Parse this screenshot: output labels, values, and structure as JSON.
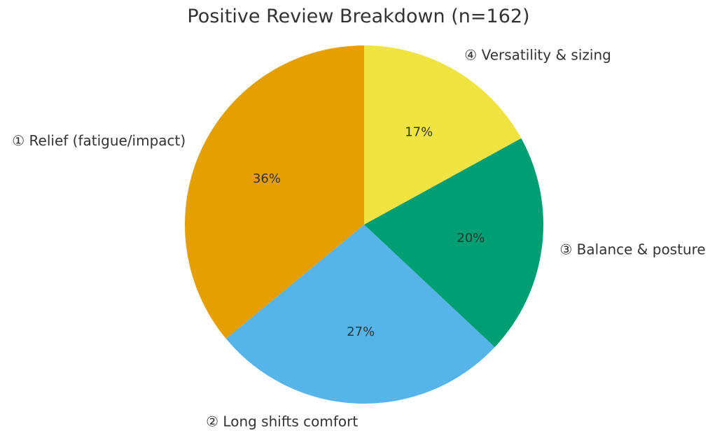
{
  "chart_data": {
    "type": "pie",
    "title": "Positive Review Breakdown (n=162)",
    "n_total": 162,
    "start_angle": 90,
    "direction": "counterclockwise",
    "label_distance": 1.1,
    "pct_distance": 0.6,
    "background_color": "#FFFFFF",
    "text_color": "#333333",
    "slices": [
      {
        "label": "① Relief (fatigue/impact)",
        "value": 36,
        "pct_label": "36%",
        "color": "#E69F00"
      },
      {
        "label": "② Long shifts comfort",
        "value": 27,
        "pct_label": "27%",
        "color": "#56B4E9"
      },
      {
        "label": "③ Balance & posture",
        "value": 20,
        "pct_label": "20%",
        "color": "#009E73"
      },
      {
        "label": "④ Versatility & sizing",
        "value": 17,
        "pct_label": "17%",
        "color": "#F0E442"
      }
    ]
  }
}
